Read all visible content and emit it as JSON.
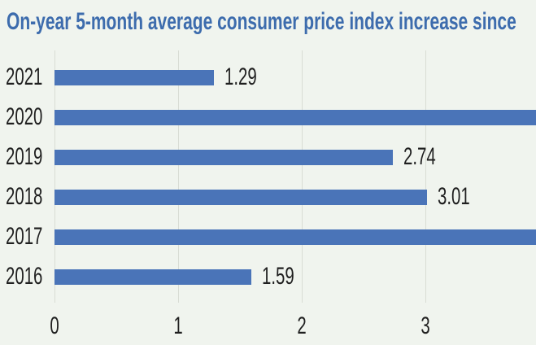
{
  "title": "On-year 5-month average consumer price index increase since",
  "colors": {
    "background": "#f0f4ee",
    "bar": "#4a74b8",
    "title_text": "#3d6cad",
    "grid": "#d8dcd4",
    "text": "#1f1f1f"
  },
  "chart_data": {
    "type": "bar",
    "orientation": "horizontal",
    "title": "On-year 5-month average consumer price index increase since",
    "categories": [
      "2021",
      "2020",
      "2019",
      "2018",
      "2017",
      "2016"
    ],
    "values": [
      1.29,
      null,
      2.74,
      3.01,
      null,
      1.59
    ],
    "data_labels": [
      "1.29",
      "",
      "2.74",
      "3.01",
      "",
      "1.59"
    ],
    "clipped_bars": [
      "2020",
      "2017"
    ],
    "x_ticks": [
      "0",
      "1",
      "2",
      "3"
    ],
    "xlim_visible": [
      0,
      3.9
    ],
    "grid": "vertical-gridlines",
    "legend": "none",
    "xlabel": "",
    "ylabel": ""
  }
}
